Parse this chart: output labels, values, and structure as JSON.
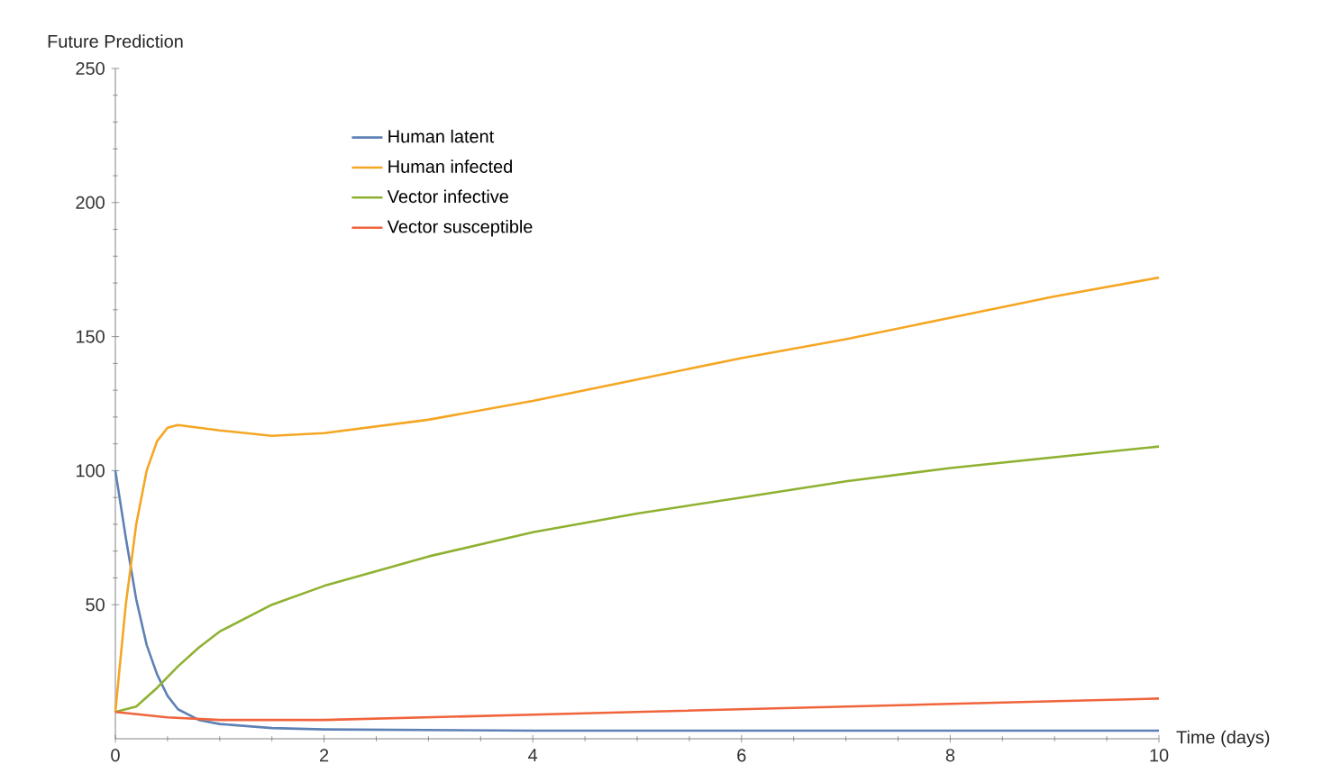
{
  "chart_data": {
    "type": "line",
    "ylabel": "Future Prediction",
    "xlabel": "Time (days)",
    "xlim": [
      0,
      10
    ],
    "ylim": [
      0,
      250
    ],
    "xticks": [
      0,
      2,
      4,
      6,
      8,
      10
    ],
    "yticks": [
      50,
      100,
      150,
      200,
      250
    ],
    "grid": false,
    "legend": "top left",
    "marker": "none",
    "line_style": "solid",
    "series": [
      {
        "name": "Human latent",
        "color": "#5e81b5",
        "x": [
          0,
          0.1,
          0.2,
          0.3,
          0.4,
          0.5,
          0.6,
          0.8,
          1,
          1.5,
          2,
          4,
          6,
          8,
          10
        ],
        "values": [
          100,
          75,
          52,
          35,
          24,
          16,
          11,
          7,
          5.5,
          4,
          3.5,
          3,
          3,
          3,
          3
        ]
      },
      {
        "name": "Human infected",
        "color": "#f5a623",
        "x": [
          0,
          0.1,
          0.2,
          0.3,
          0.4,
          0.5,
          0.6,
          0.8,
          1,
          1.5,
          2,
          3,
          4,
          5,
          6,
          7,
          8,
          9,
          10
        ],
        "values": [
          10,
          50,
          80,
          100,
          111,
          116,
          117,
          116,
          115,
          113,
          114,
          119,
          126,
          134,
          142,
          149,
          157,
          165,
          172
        ]
      },
      {
        "name": "Vector infective",
        "color": "#8fb131",
        "x": [
          0,
          0.2,
          0.4,
          0.6,
          0.8,
          1,
          1.5,
          2,
          3,
          4,
          5,
          6,
          7,
          8,
          9,
          10
        ],
        "values": [
          10,
          12,
          19,
          27,
          34,
          40,
          50,
          57,
          68,
          77,
          84,
          90,
          96,
          101,
          105,
          109
        ]
      },
      {
        "name": "Vector susceptible",
        "color": "#f0643c",
        "x": [
          0,
          0.5,
          1,
          2,
          4,
          6,
          8,
          10
        ],
        "values": [
          10,
          8,
          7,
          7,
          9,
          11,
          13,
          15
        ]
      }
    ]
  }
}
